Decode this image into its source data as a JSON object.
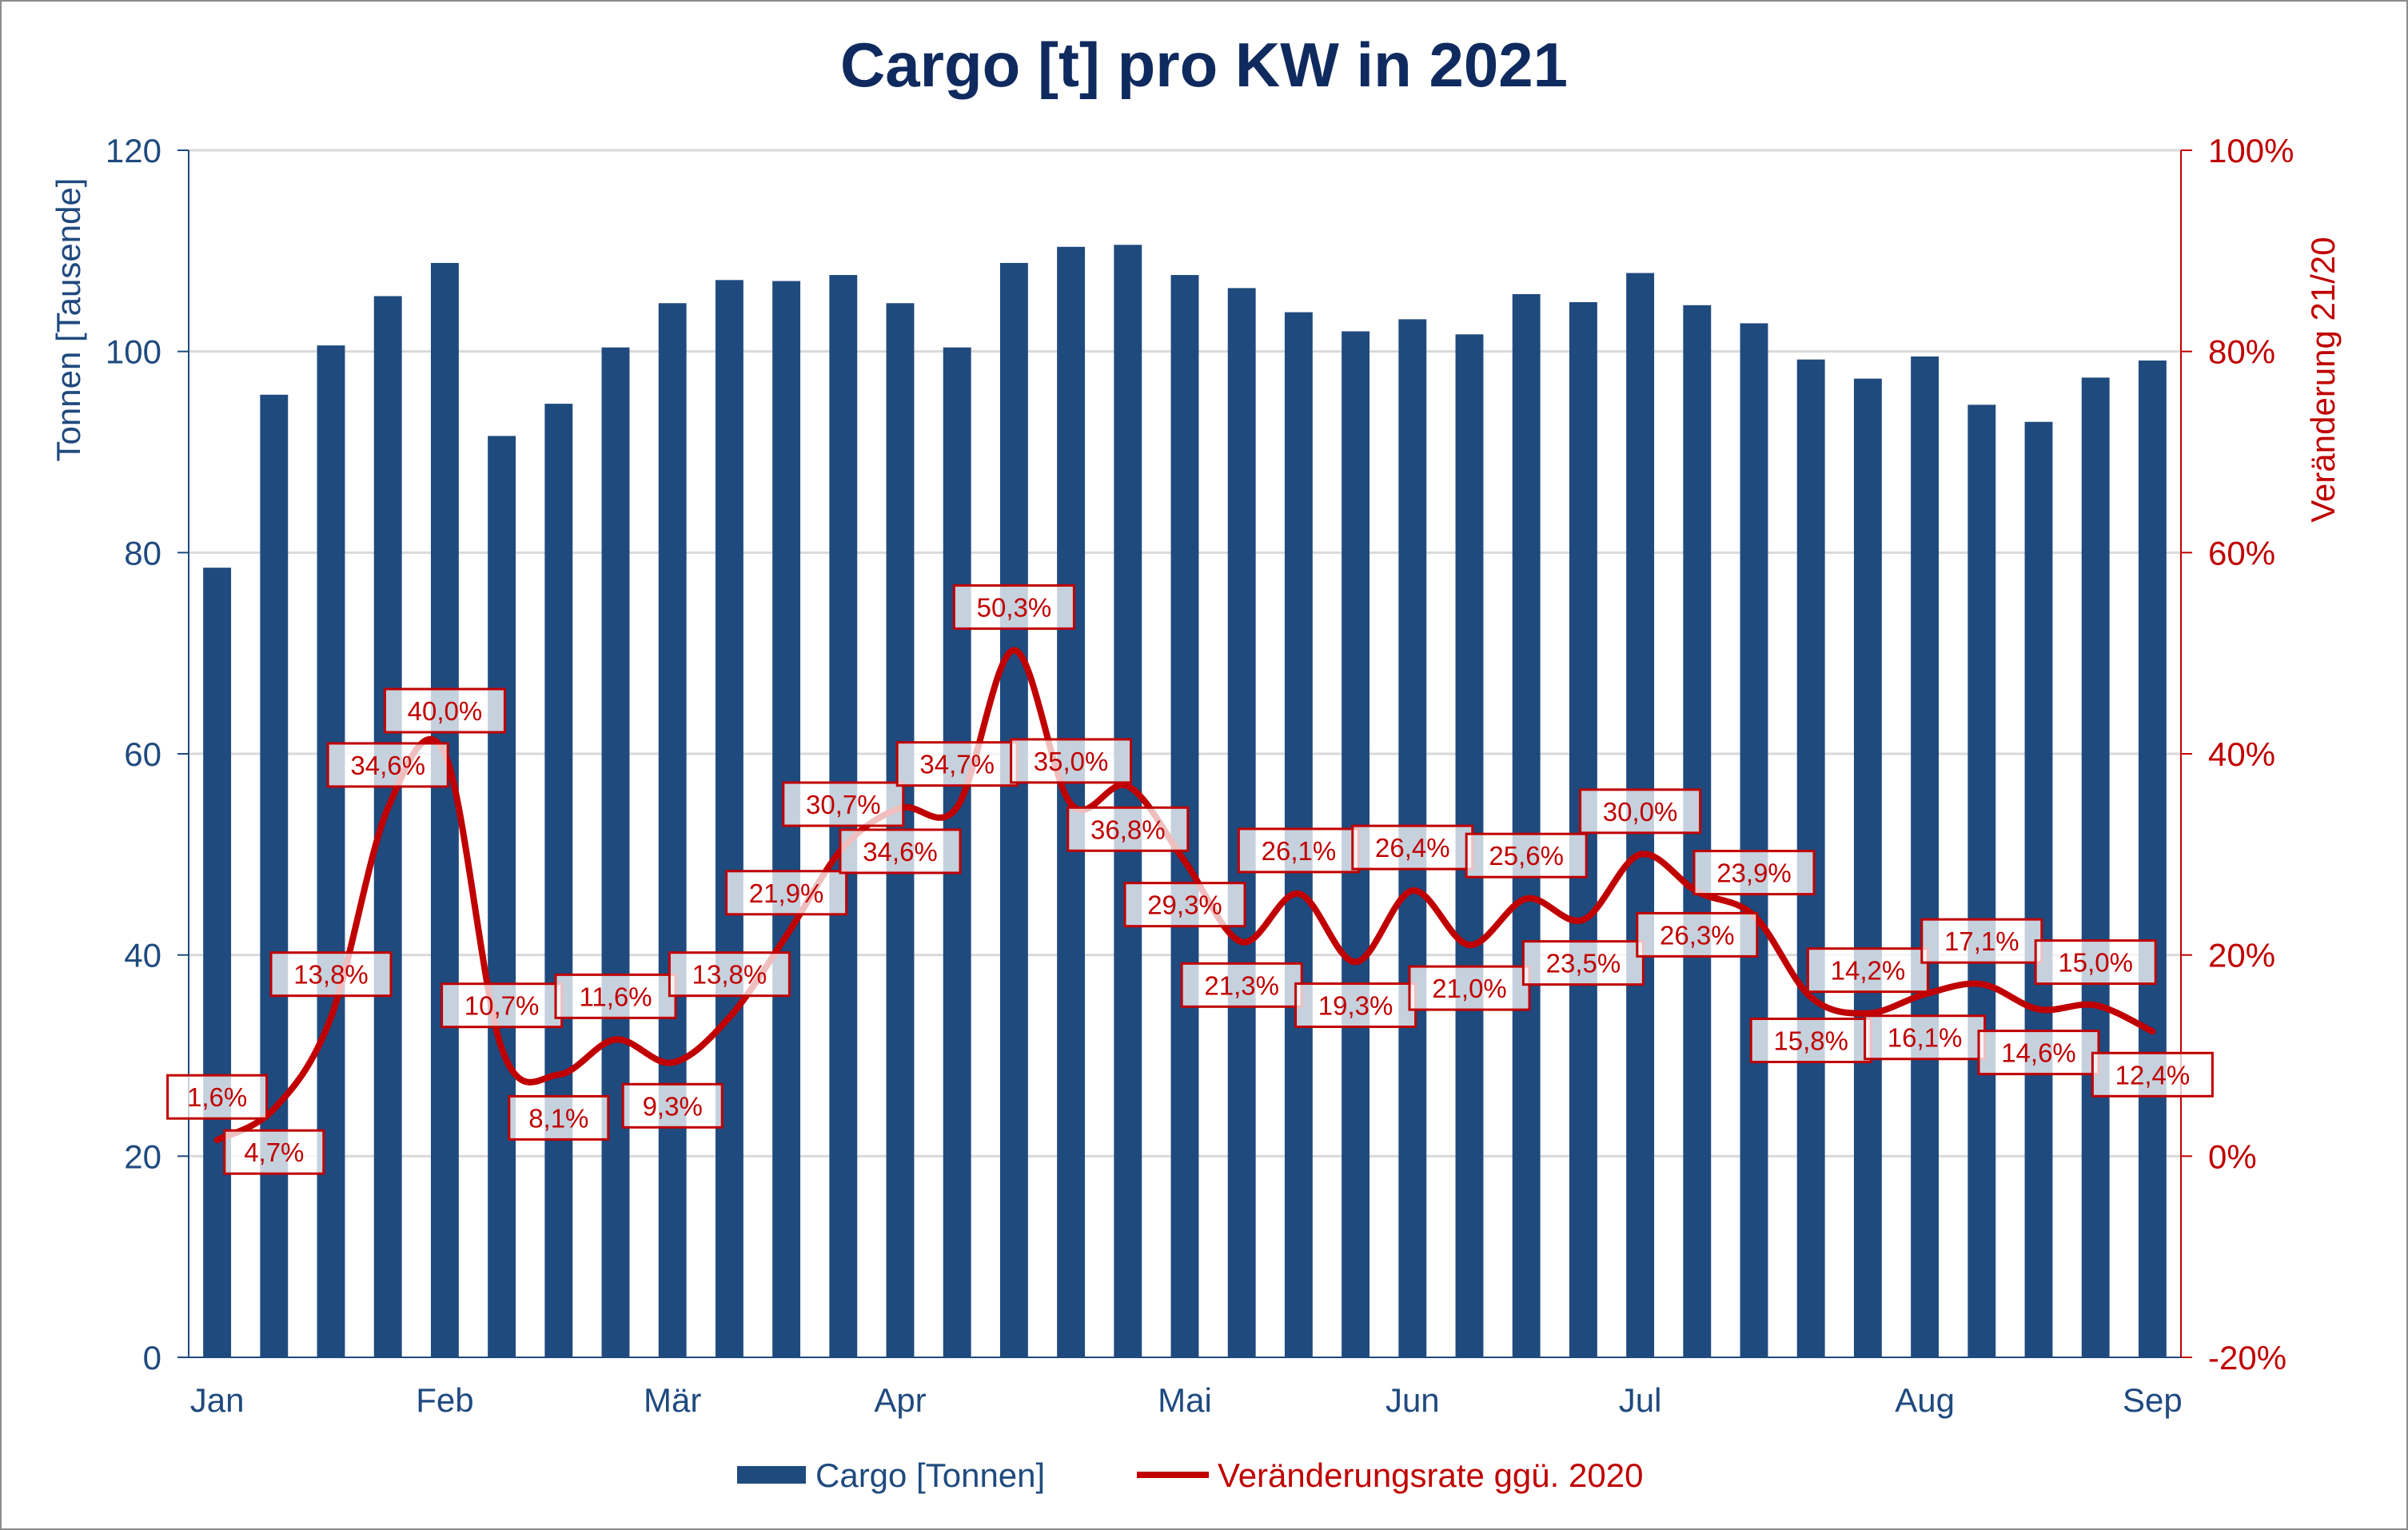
{
  "chart_data": {
    "type": "bar+line",
    "title": "Cargo [t] pro KW in 2021",
    "ylabel_left": "Tonnen [Tausende]",
    "ylabel_right": "Veränderung 21/20",
    "ylim_left": [
      0,
      120
    ],
    "ylim_right": [
      -20,
      100
    ],
    "yticks_left": [
      "0",
      "20",
      "40",
      "60",
      "80",
      "100",
      "120"
    ],
    "yticks_right": [
      "-20%",
      "0%",
      "20%",
      "40%",
      "60%",
      "80%",
      "100%"
    ],
    "grid": true,
    "legend_position": "bottom",
    "x_weeks": [
      1,
      2,
      3,
      4,
      5,
      6,
      7,
      8,
      9,
      10,
      11,
      12,
      13,
      14,
      15,
      16,
      17,
      18,
      19,
      20,
      21,
      22,
      23,
      24,
      25,
      26,
      27,
      28,
      29,
      30,
      31,
      32,
      33,
      34,
      35
    ],
    "month_labels": [
      {
        "label": "Jan",
        "week": 1
      },
      {
        "label": "Feb",
        "week": 5
      },
      {
        "label": "Mär",
        "week": 9
      },
      {
        "label": "Apr",
        "week": 13
      },
      {
        "label": "Mai",
        "week": 18
      },
      {
        "label": "Jun",
        "week": 22
      },
      {
        "label": "Jul",
        "week": 26
      },
      {
        "label": "Aug",
        "week": 31
      },
      {
        "label": "Sep",
        "week": 35
      }
    ],
    "series": [
      {
        "name": "Cargo [Tonnen]",
        "type": "bar",
        "axis": "left",
        "color": "#1f4a7e",
        "values": [
          78.5,
          95.7,
          100.6,
          105.5,
          108.8,
          91.6,
          94.8,
          100.4,
          104.8,
          107.1,
          107.0,
          107.6,
          104.8,
          100.4,
          108.8,
          110.4,
          110.6,
          107.6,
          106.3,
          103.9,
          102.0,
          103.2,
          101.7,
          105.7,
          104.9,
          107.8,
          104.6,
          102.8,
          99.2,
          97.3,
          99.5,
          94.7,
          93.0,
          97.4,
          99.1
        ]
      },
      {
        "name": "Veränderungsrate ggü. 2020",
        "type": "line",
        "axis": "right",
        "color": "#c00000",
        "values": [
          1.6,
          4.7,
          13.8,
          34.6,
          40.0,
          10.7,
          8.1,
          11.6,
          9.3,
          13.8,
          21.9,
          30.7,
          34.6,
          34.7,
          50.3,
          35.0,
          36.8,
          29.3,
          21.3,
          26.1,
          19.3,
          26.4,
          21.0,
          25.6,
          23.5,
          30.0,
          26.3,
          23.9,
          15.8,
          14.2,
          16.1,
          17.1,
          14.6,
          15.0,
          12.4
        ],
        "data_labels": [
          "1,6%",
          "4,7%",
          "13,8%",
          "34,6%",
          "40,0%",
          "10,7%",
          "8,1%",
          "11,6%",
          "9,3%",
          "13,8%",
          "21,9%",
          "30,7%",
          "34,6%",
          "34,7%",
          "50,3%",
          "35,0%",
          "36,8%",
          "29,3%",
          "21,3%",
          "26,1%",
          "19,3%",
          "26,4%",
          "21,0%",
          "25,6%",
          "23,5%",
          "30,0%",
          "26,3%",
          "23,9%",
          "15,8%",
          "14,2%",
          "16,1%",
          "17,1%",
          "14,6%",
          "15,0%",
          "12,4%"
        ]
      }
    ]
  }
}
